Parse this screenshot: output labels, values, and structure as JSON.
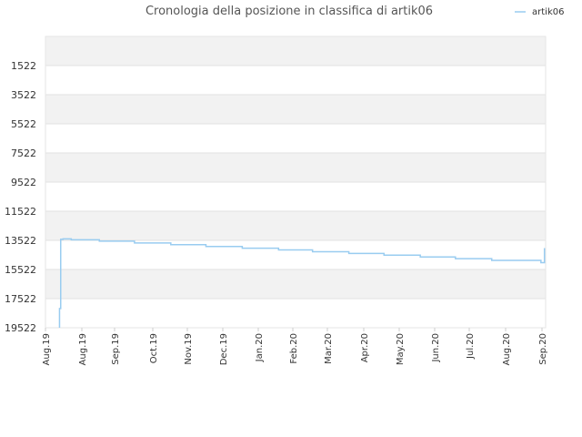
{
  "chart_data": {
    "type": "line",
    "title": "Cronologia della posizione in classifica di artik06",
    "xlabel": "",
    "ylabel": "",
    "y_inverted": true,
    "ylim": [
      19522,
      -478
    ],
    "yticks": [
      1522,
      3522,
      5522,
      7522,
      9522,
      11522,
      13522,
      15522,
      17522,
      19522
    ],
    "xticks": [
      "Aug.19",
      "Aug.19",
      "Sep.19",
      "Oct.19",
      "Nov.19",
      "Dec.19",
      "Jan.20",
      "Feb.20",
      "Mar.20",
      "Apr.20",
      "May.20",
      "Jun.20",
      "Jul.20",
      "Aug.20",
      "Sep.20"
    ],
    "xlim": [
      "2019-07-31",
      "2020-09-30"
    ],
    "legend": {
      "position": "top-right"
    },
    "series": [
      {
        "name": "artik06",
        "color": "#99ccf0",
        "points": [
          {
            "x": "2019-08-12",
            "y": 19522
          },
          {
            "x": "2019-08-12",
            "y": 18200
          },
          {
            "x": "2019-08-13",
            "y": 18000
          },
          {
            "x": "2019-08-13",
            "y": 13450
          },
          {
            "x": "2019-08-15",
            "y": 13420
          },
          {
            "x": "2019-08-22",
            "y": 13480
          },
          {
            "x": "2019-09-15",
            "y": 13580
          },
          {
            "x": "2019-10-15",
            "y": 13700
          },
          {
            "x": "2019-11-15",
            "y": 13820
          },
          {
            "x": "2019-12-15",
            "y": 13940
          },
          {
            "x": "2020-01-15",
            "y": 14060
          },
          {
            "x": "2020-02-15",
            "y": 14180
          },
          {
            "x": "2020-03-15",
            "y": 14300
          },
          {
            "x": "2020-04-15",
            "y": 14420
          },
          {
            "x": "2020-05-15",
            "y": 14540
          },
          {
            "x": "2020-06-15",
            "y": 14660
          },
          {
            "x": "2020-07-15",
            "y": 14780
          },
          {
            "x": "2020-08-15",
            "y": 14900
          },
          {
            "x": "2020-09-26",
            "y": 15050
          },
          {
            "x": "2020-09-29",
            "y": 14050
          }
        ]
      }
    ],
    "grid": true
  }
}
